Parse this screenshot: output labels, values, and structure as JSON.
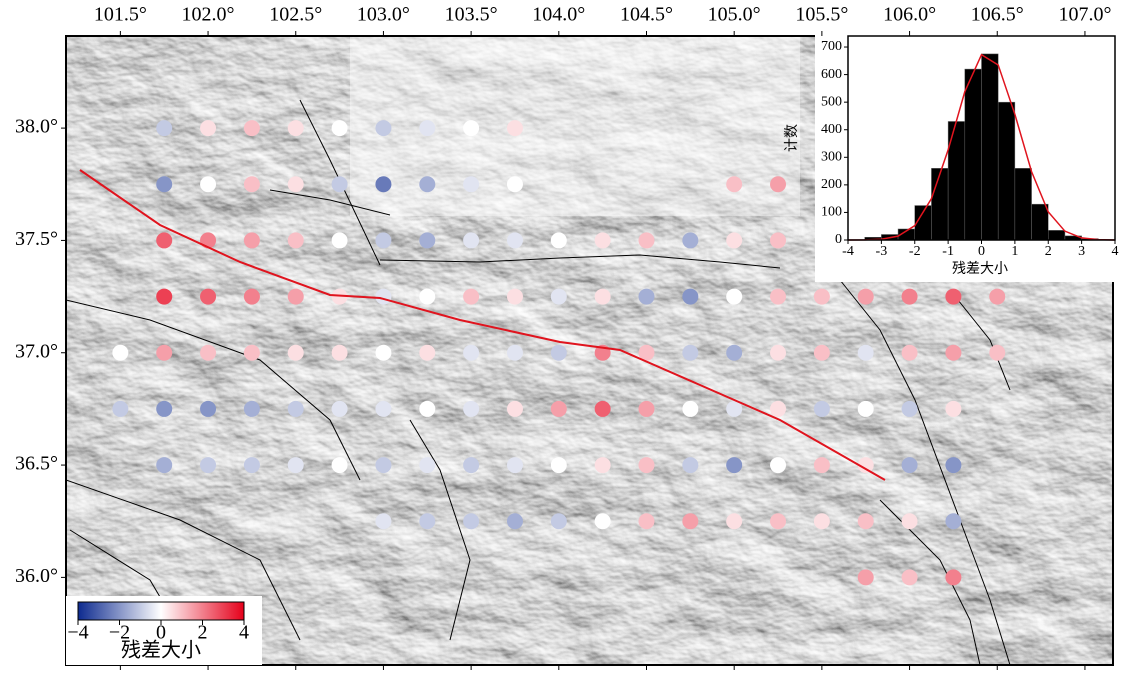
{
  "chart_data": [
    {
      "type": "map",
      "xlim": [
        101.19,
        107.16
      ],
      "ylim": [
        35.61,
        38.41
      ],
      "xticks": [
        {
          "value": 101.5,
          "label": "101.5°"
        },
        {
          "value": 102.0,
          "label": "102.0°"
        },
        {
          "value": 102.5,
          "label": "102.5°"
        },
        {
          "value": 103.0,
          "label": "103.0°"
        },
        {
          "value": 103.5,
          "label": "103.5°"
        },
        {
          "value": 104.0,
          "label": "104.0°"
        },
        {
          "value": 104.5,
          "label": "104.5°"
        },
        {
          "value": 105.0,
          "label": "105.0°"
        },
        {
          "value": 105.5,
          "label": "105.5°"
        },
        {
          "value": 106.0,
          "label": "106.0°"
        },
        {
          "value": 106.5,
          "label": "106.5°"
        },
        {
          "value": 107.0,
          "label": "107.0°"
        }
      ],
      "yticks": [
        {
          "value": 38.0,
          "label": "38.0°"
        },
        {
          "value": 37.5,
          "label": "37.5°"
        },
        {
          "value": 37.0,
          "label": "37.0°"
        },
        {
          "value": 36.5,
          "label": "36.5°"
        },
        {
          "value": 36.0,
          "label": "36.0°"
        }
      ],
      "grid_lon": [
        101.5,
        101.75,
        102,
        102.25,
        102.5,
        102.75,
        103,
        103.25,
        103.5,
        103.75,
        104,
        104.25,
        104.5,
        104.75,
        105,
        105.25,
        105.5,
        105.75,
        106,
        106.25,
        106.5
      ],
      "grid_lat": [
        38.0,
        37.75,
        37.5,
        37.25,
        37.0,
        36.75,
        36.5,
        36.25,
        36.0
      ],
      "residuals": [
        [
          null,
          -1,
          0.5,
          1,
          0.5,
          0,
          -1,
          -0.5,
          0,
          0.5,
          null,
          null,
          null,
          null,
          null,
          null,
          null,
          null,
          null,
          null,
          null
        ],
        [
          null,
          -2,
          0,
          1,
          0.5,
          -1,
          -2.5,
          -1.5,
          -0.5,
          0,
          null,
          null,
          null,
          null,
          1,
          1.5,
          null,
          null,
          null,
          null,
          null
        ],
        [
          null,
          2.5,
          2,
          1.5,
          1,
          0,
          -1,
          -1.5,
          -0.5,
          -0.5,
          0,
          0.5,
          1,
          -1.5,
          0.5,
          1,
          null,
          null,
          null,
          null,
          null
        ],
        [
          null,
          3,
          2.5,
          2,
          1.5,
          0.5,
          -0.5,
          0,
          1,
          0.5,
          -0.5,
          0.5,
          -1.5,
          -2,
          0,
          1,
          1,
          1.5,
          2,
          2.5,
          1.5
        ],
        [
          0,
          1.5,
          1,
          1,
          0.5,
          0.5,
          0,
          0.5,
          -0.5,
          -0.5,
          -1,
          2,
          1,
          -1,
          -1.5,
          0.5,
          1,
          -0.5,
          1,
          1.5,
          1
        ],
        [
          -1,
          -2,
          -2,
          -1.5,
          -1,
          -0.5,
          -0.5,
          0,
          -0.5,
          0.5,
          1.5,
          2.5,
          1.5,
          0,
          -0.5,
          0.5,
          -1,
          0,
          -1,
          0.5,
          null
        ],
        [
          null,
          -1.5,
          -1,
          -1,
          -0.5,
          0,
          -1,
          -0.5,
          -1,
          -0.5,
          0,
          0.5,
          1,
          -1,
          -2,
          0,
          1,
          0.5,
          -1.5,
          -2,
          null
        ],
        [
          null,
          null,
          null,
          null,
          null,
          null,
          -0.5,
          -1,
          -1,
          -1.5,
          -1,
          0,
          1,
          1.5,
          0.5,
          1,
          0.5,
          1,
          0.5,
          -1.5,
          null
        ],
        [
          null,
          null,
          null,
          null,
          null,
          null,
          null,
          null,
          null,
          null,
          null,
          null,
          null,
          null,
          null,
          null,
          null,
          1.5,
          1,
          2,
          null
        ]
      ],
      "colorbar": {
        "lim": [
          -4,
          4
        ],
        "colors": [
          "#0d2a8f",
          "#ffffff",
          "#e5001a"
        ],
        "ticks": [
          {
            "value": -4,
            "label": "−4"
          },
          {
            "value": -2,
            "label": "−2"
          },
          0,
          2,
          4
        ],
        "label": "残差大小"
      }
    },
    {
      "type": "histogram",
      "bins": [
        -4,
        -3.5,
        -3,
        -2.5,
        -2,
        -1.5,
        -1,
        -0.5,
        0,
        0.5,
        1,
        1.5,
        2,
        2.5,
        3,
        3.5,
        4
      ],
      "values": [
        0,
        10,
        20,
        40,
        125,
        260,
        430,
        620,
        675,
        500,
        260,
        130,
        35,
        15,
        5,
        0
      ],
      "color": "#000000",
      "xlim": [
        -4,
        4
      ],
      "ylim": [
        0,
        740
      ],
      "xticks": [
        -4,
        -3,
        -2,
        -1,
        0,
        1,
        2,
        3,
        4
      ],
      "yticks": [
        0,
        100,
        200,
        300,
        400,
        500,
        600,
        700
      ],
      "x_label": "残差大小",
      "y_label": "计数",
      "fit_curve": {
        "color": "#e0141e",
        "x": [
          -4,
          -3.5,
          -3,
          -2.5,
          -2,
          -1.5,
          -1,
          -0.5,
          0,
          0.5,
          1,
          1.5,
          2,
          2.5,
          3,
          3.5,
          4
        ],
        "y": [
          0,
          0.4,
          2.8,
          14,
          52,
          150,
          327,
          538,
          672,
          635,
          456,
          248,
          102,
          32,
          7.5,
          1.4,
          0
        ]
      }
    }
  ]
}
